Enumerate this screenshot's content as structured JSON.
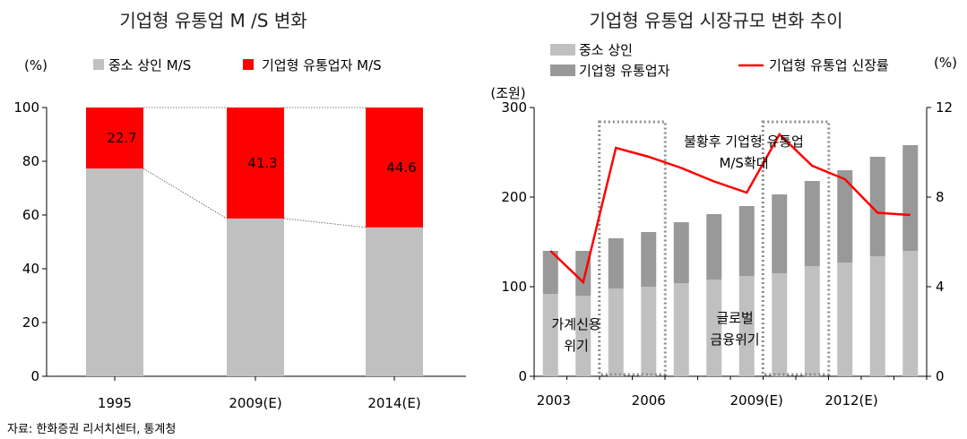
{
  "source": "자료: 한화증권 리서치센터, 통계청",
  "colors": {
    "small_merchant": "#c0c0c0",
    "corporate": "#ff0000",
    "corporate_retail": "#999999",
    "growth_line": "#ff0000",
    "highlight_box": "#8c8c8c"
  },
  "chart_data": [
    {
      "type": "bar",
      "stacked": true,
      "title": "기업형 유통업 M /S 변화",
      "ylabel_unit": "(%)",
      "categories": [
        "1995",
        "2009(E)",
        "2014(E)"
      ],
      "ylim": [
        0,
        100
      ],
      "yticks": [
        "0",
        "20",
        "40",
        "60",
        "80",
        "100"
      ],
      "legend_position": "top",
      "series": [
        {
          "name": "중소 상인 M/S",
          "values": [
            77.3,
            58.7,
            55.4
          ],
          "color": "#c0c0c0"
        },
        {
          "name": "기업형 유통업자 M/S",
          "values": [
            22.7,
            41.3,
            44.6
          ],
          "color": "#ff0000"
        }
      ],
      "data_labels": [
        "22.7",
        "41.3",
        "44.6"
      ]
    },
    {
      "type": "bar",
      "stacked": true,
      "title": "기업형 유통업 시장규모 변화 추이",
      "ylabel_unit_left": "(조원)",
      "ylabel_unit_right": "(%)",
      "x": [
        "2003",
        "2004",
        "2005",
        "2006",
        "2007",
        "2008",
        "2009",
        "2010",
        "2011",
        "2012",
        "2013",
        "2014"
      ],
      "xtick_labels": [
        "2003",
        "2006",
        "2009(E)",
        "2012(E)"
      ],
      "ylim_left": [
        0,
        300
      ],
      "yticks_left": [
        "0",
        "100",
        "200",
        "300"
      ],
      "ylim_right": [
        0,
        12
      ],
      "yticks_right": [
        "0",
        "4",
        "8",
        "12"
      ],
      "legend_position": "top",
      "series": [
        {
          "name": "중소 상인",
          "type": "bar",
          "values": [
            92,
            90,
            98,
            100,
            104,
            108,
            112,
            115,
            123,
            127,
            134,
            140
          ],
          "color": "#c0c0c0"
        },
        {
          "name": "기업형 유통업자",
          "type": "bar",
          "values": [
            48,
            50,
            56,
            61,
            68,
            73,
            78,
            88,
            95,
            103,
            111,
            118
          ],
          "color": "#999999"
        },
        {
          "name": "기업형 유통업 신장률",
          "type": "line",
          "axis": "right",
          "values": [
            5.6,
            4.2,
            10.2,
            9.8,
            9.3,
            8.7,
            8.2,
            10.8,
            9.4,
            8.8,
            7.3,
            7.2
          ],
          "color": "#ff0000"
        }
      ],
      "annotations": [
        {
          "lines": [
            "가계신용",
            "위기"
          ]
        },
        {
          "lines": [
            "글로벌",
            "금융위기"
          ]
        },
        {
          "lines": [
            "불황후 기업형 유통업",
            "M/S확대"
          ]
        }
      ]
    }
  ]
}
